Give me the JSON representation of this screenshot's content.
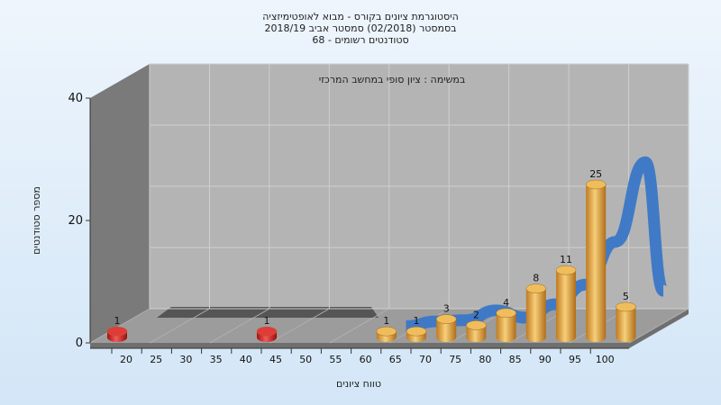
{
  "colors": {
    "background": "#e3eef9",
    "back_wall": "#b4b4b4",
    "side_wall": "#7a7a7a",
    "floor": "#9c9c9c",
    "bar_normal": "#e3a13b",
    "bar_fail": "#d11b1b",
    "curve": "#3a77c8",
    "grid": "#cfcfcf"
  },
  "chart_data": {
    "type": "bar",
    "title": "היסטוגרמת ציונים בקורס - מבוא לאופטימיזציה",
    "subtitle_lines": [
      "בסמסטר  (02/2018)  סמסטר אביב 2018/19",
      "סטודנטים רשומים - 68"
    ],
    "annotation": "במשימה : ציון סופי במחשב המרכזי",
    "xlabel": "טווח ציונים",
    "ylabel": "מספר סטודנטים",
    "x_ticks": [
      "20",
      "25",
      "30",
      "35",
      "40",
      "45",
      "50",
      "55",
      "60",
      "65",
      "70",
      "75",
      "80",
      "85",
      "90",
      "95",
      "100"
    ],
    "y_ticks": [
      "0",
      "20",
      "40"
    ],
    "ylim": [
      0,
      40
    ],
    "bars": [
      {
        "x": 20,
        "value": 1,
        "status": "fail"
      },
      {
        "x": 45,
        "value": 1,
        "status": "fail"
      },
      {
        "x": 65,
        "value": 1,
        "status": "pass"
      },
      {
        "x": 70,
        "value": 1,
        "status": "pass"
      },
      {
        "x": 75,
        "value": 3,
        "status": "pass"
      },
      {
        "x": 80,
        "value": 2,
        "status": "pass"
      },
      {
        "x": 85,
        "value": 4,
        "status": "pass"
      },
      {
        "x": 90,
        "value": 8,
        "status": "pass"
      },
      {
        "x": 95,
        "value": 11,
        "status": "pass"
      },
      {
        "x": 100,
        "value": 25,
        "status": "pass"
      },
      {
        "x": 105,
        "value": 5,
        "status": "pass"
      }
    ],
    "curve": {
      "series": "distribution",
      "x": [
        65,
        70,
        75,
        80,
        85,
        90,
        95,
        100,
        105,
        108
      ],
      "y": [
        0.2,
        1.0,
        1.2,
        2.8,
        1.6,
        3.8,
        7.0,
        14.0,
        27.0,
        6.0
      ]
    },
    "grid": true
  }
}
